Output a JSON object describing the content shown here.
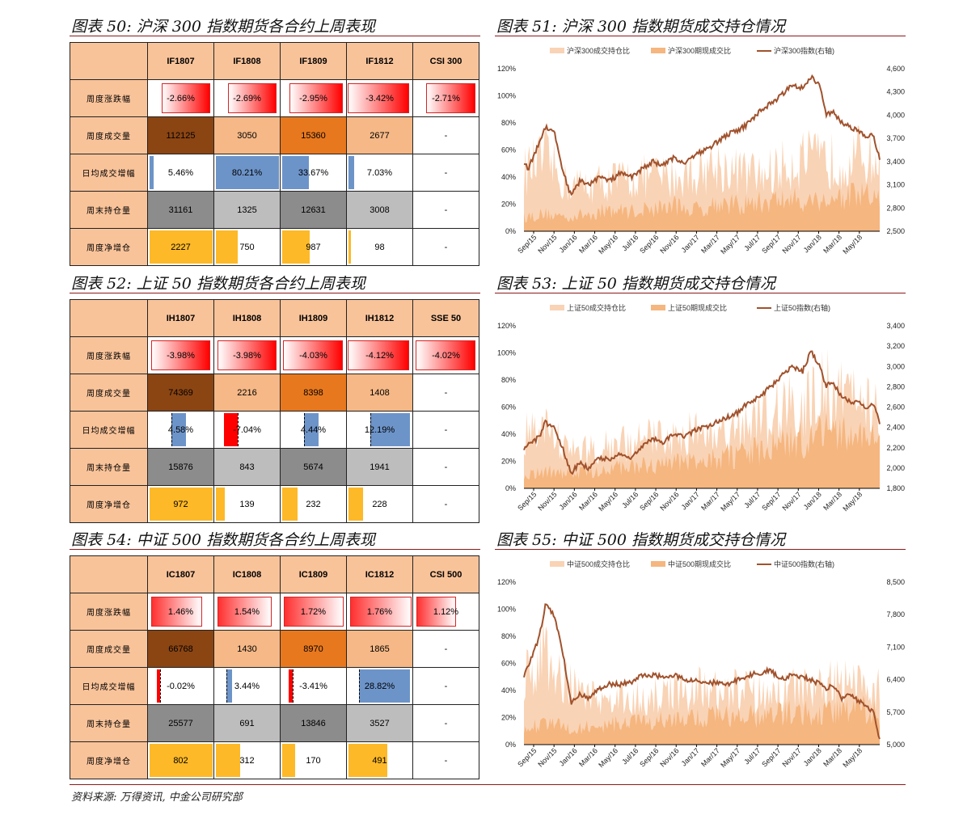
{
  "titles": {
    "t50": "图表 50:  沪深 300 指数期货各合约上周表现",
    "t51": "图表 51:  沪深 300 指数期货成交持仓情况",
    "t52": "图表 52:  上证 50 指数期货各合约上周表现",
    "t53": "图表 53:  上证 50 指数期货成交持仓情况",
    "t54": "图表 54:  中证 500 指数期货各合约上周表现",
    "t55": "图表 55:  中证 500 指数期货成交持仓情况"
  },
  "source": "资料来源:  万得资讯,  中金公司研究部",
  "colors": {
    "header": "#F9C39A",
    "red": "#FF0000",
    "brown": "#8B4513",
    "orange": "#E8781E",
    "peach": "#F5B886",
    "blue": "#6D94C9",
    "darkgray": "#8C8C8C",
    "gray": "#BDBDBD",
    "gold": "#FDB927",
    "line": "#A0522D",
    "area1": "#F9D3B5",
    "area2": "#F5B67F",
    "rule": "#8B1A1A"
  },
  "tables": [
    {
      "id": "t50",
      "headers": [
        "IF1807",
        "IF1808",
        "IF1809",
        "IF1812",
        "CSI 300"
      ],
      "rows": [
        {
          "label": "周度涨跌幅",
          "kind": "neg",
          "cells": [
            {
              "text": "-2.66%",
              "v": 2.66
            },
            {
              "text": "-2.69%",
              "v": 2.69
            },
            {
              "text": "-2.95%",
              "v": 2.95
            },
            {
              "text": "-3.42%",
              "v": 3.42
            },
            {
              "text": "-2.71%",
              "v": 2.71
            }
          ]
        },
        {
          "label": "周度成交量",
          "kind": "heat",
          "cells": [
            {
              "text": "112125",
              "tone": "brown"
            },
            {
              "text": "3050",
              "tone": "peach"
            },
            {
              "text": "15360",
              "tone": "orange"
            },
            {
              "text": "2677",
              "tone": "peach"
            },
            {
              "text": "-",
              "tone": "none"
            }
          ]
        },
        {
          "label": "日均成交增幅",
          "kind": "bar",
          "color": "blue",
          "cells": [
            {
              "text": "5.46%",
              "v": 0.068
            },
            {
              "text": "80.21%",
              "v": 1.0
            },
            {
              "text": "33.67%",
              "v": 0.42
            },
            {
              "text": "7.03%",
              "v": 0.088
            },
            {
              "text": "-",
              "v": 0
            }
          ]
        },
        {
          "label": "周末持仓量",
          "kind": "gray",
          "cells": [
            {
              "text": "31161",
              "tone": "darkgray"
            },
            {
              "text": "1325",
              "tone": "gray"
            },
            {
              "text": "12631",
              "tone": "darkgray"
            },
            {
              "text": "3008",
              "tone": "gray"
            },
            {
              "text": "-",
              "tone": "none"
            }
          ]
        },
        {
          "label": "周度净增仓",
          "kind": "bar",
          "color": "gold",
          "cells": [
            {
              "text": "2227",
              "v": 1.0
            },
            {
              "text": "750",
              "v": 0.34
            },
            {
              "text": "987",
              "v": 0.44
            },
            {
              "text": "98",
              "v": 0.044
            },
            {
              "text": "-",
              "v": 0
            }
          ]
        }
      ]
    },
    {
      "id": "t52",
      "headers": [
        "IH1807",
        "IH1808",
        "IH1809",
        "IH1812",
        "SSE 50"
      ],
      "rows": [
        {
          "label": "周度涨跌幅",
          "kind": "neg",
          "cells": [
            {
              "text": "-3.98%",
              "v": 3.98
            },
            {
              "text": "-3.98%",
              "v": 3.98
            },
            {
              "text": "-4.03%",
              "v": 4.03
            },
            {
              "text": "-4.12%",
              "v": 4.12
            },
            {
              "text": "-4.02%",
              "v": 4.02
            }
          ]
        },
        {
          "label": "周度成交量",
          "kind": "heat",
          "cells": [
            {
              "text": "74369",
              "tone": "brown"
            },
            {
              "text": "2216",
              "tone": "peach"
            },
            {
              "text": "8398",
              "tone": "orange"
            },
            {
              "text": "1408",
              "tone": "peach"
            },
            {
              "text": "-",
              "tone": "none"
            }
          ]
        },
        {
          "label": "日均成交增幅",
          "kind": "mixbar",
          "cells": [
            {
              "text": "4.58%",
              "v": 4.58
            },
            {
              "text": "-7.04%",
              "v": -7.04
            },
            {
              "text": "4.44%",
              "v": 4.44
            },
            {
              "text": "12.19%",
              "v": 12.19
            },
            {
              "text": "-",
              "v": 0
            }
          ]
        },
        {
          "label": "周末持仓量",
          "kind": "gray",
          "cells": [
            {
              "text": "15876",
              "tone": "darkgray"
            },
            {
              "text": "843",
              "tone": "gray"
            },
            {
              "text": "5674",
              "tone": "darkgray"
            },
            {
              "text": "1941",
              "tone": "gray"
            },
            {
              "text": "-",
              "tone": "none"
            }
          ]
        },
        {
          "label": "周度净增仓",
          "kind": "bar",
          "color": "gold",
          "cells": [
            {
              "text": "972",
              "v": 1.0
            },
            {
              "text": "139",
              "v": 0.14
            },
            {
              "text": "232",
              "v": 0.24
            },
            {
              "text": "228",
              "v": 0.235
            },
            {
              "text": "-",
              "v": 0
            }
          ]
        }
      ]
    },
    {
      "id": "t54",
      "headers": [
        "IC1807",
        "IC1808",
        "IC1809",
        "IC1812",
        "CSI 500"
      ],
      "rows": [
        {
          "label": "周度涨跌幅",
          "kind": "pos",
          "cells": [
            {
              "text": "1.46%",
              "v": 1.46
            },
            {
              "text": "1.54%",
              "v": 1.54
            },
            {
              "text": "1.72%",
              "v": 1.72
            },
            {
              "text": "1.76%",
              "v": 1.76
            },
            {
              "text": "1.12%",
              "v": 1.12
            }
          ]
        },
        {
          "label": "周度成交量",
          "kind": "heat",
          "cells": [
            {
              "text": "66768",
              "tone": "brown"
            },
            {
              "text": "1430",
              "tone": "peach"
            },
            {
              "text": "8970",
              "tone": "orange"
            },
            {
              "text": "1865",
              "tone": "peach"
            },
            {
              "text": "-",
              "tone": "none"
            }
          ]
        },
        {
          "label": "日均成交增幅",
          "kind": "mixbar",
          "cells": [
            {
              "text": "-0.02%",
              "v": -0.02
            },
            {
              "text": "3.44%",
              "v": 3.44
            },
            {
              "text": "-3.41%",
              "v": -3.41
            },
            {
              "text": "28.82%",
              "v": 28.82
            },
            {
              "text": "-",
              "v": 0
            }
          ]
        },
        {
          "label": "周末持仓量",
          "kind": "gray",
          "cells": [
            {
              "text": "25577",
              "tone": "darkgray"
            },
            {
              "text": "691",
              "tone": "gray"
            },
            {
              "text": "13846",
              "tone": "darkgray"
            },
            {
              "text": "3527",
              "tone": "gray"
            },
            {
              "text": "-",
              "tone": "none"
            }
          ]
        },
        {
          "label": "周度净增仓",
          "kind": "bar",
          "color": "gold",
          "cells": [
            {
              "text": "802",
              "v": 1.0
            },
            {
              "text": "312",
              "v": 0.39
            },
            {
              "text": "170",
              "v": 0.21
            },
            {
              "text": "491",
              "v": 0.61
            },
            {
              "text": "-",
              "v": 0
            }
          ]
        }
      ]
    }
  ],
  "chart_data": [
    {
      "id": "c51",
      "type": "line",
      "legend": [
        "沪深300成交持仓比",
        "沪深300期现成交比",
        "沪深300指数(右轴)"
      ],
      "x_ticks": [
        "Sep/15",
        "Nov/15",
        "Jan/16",
        "Mar/16",
        "May/16",
        "Jul/16",
        "Sep/16",
        "Nov/16",
        "Jan/17",
        "Mar/17",
        "May/17",
        "Jul/17",
        "Sep/17",
        "Nov/17",
        "Jan/18",
        "Mar/18",
        "May/18"
      ],
      "y_left": [
        "0%",
        "20%",
        "40%",
        "60%",
        "80%",
        "100%",
        "120%"
      ],
      "ylim_left": [
        0,
        1.2
      ],
      "y_right": [
        "2,500",
        "2,800",
        "3,100",
        "3,400",
        "3,700",
        "4,000",
        "4,300",
        "4,600"
      ],
      "ylim_right": [
        2500,
        4600
      ],
      "index_x": [
        0,
        0.2,
        0.5,
        1.0,
        1.4,
        1.8,
        2.2,
        2.6,
        3,
        3.5,
        4,
        4.5,
        5,
        5.5,
        6,
        6.5,
        7,
        7.5,
        8,
        8.5,
        9,
        9.5,
        10,
        10.5,
        11,
        11.5,
        12,
        12.5,
        13,
        13.4,
        13.8,
        14.1,
        14.4,
        14.8,
        15.2,
        15.6,
        16,
        16.3,
        16.6
      ],
      "index": [
        3400,
        3300,
        3500,
        3850,
        3800,
        3300,
        2950,
        3150,
        3100,
        3200,
        3150,
        3250,
        3200,
        3300,
        3400,
        3350,
        3450,
        3380,
        3500,
        3550,
        3650,
        3750,
        3800,
        3900,
        4050,
        4150,
        4250,
        4400,
        4350,
        4500,
        4380,
        4000,
        4050,
        3900,
        3850,
        3800,
        3700,
        3750,
        3420
      ],
      "ratio1_x": [
        0,
        1,
        2,
        3,
        4,
        5,
        6,
        7,
        8,
        9,
        10,
        11,
        12,
        13,
        14,
        15,
        16,
        16.6
      ],
      "ratio1": [
        0.45,
        0.55,
        0.35,
        0.35,
        0.38,
        0.4,
        0.42,
        0.4,
        0.45,
        0.5,
        0.45,
        0.42,
        0.48,
        0.55,
        0.52,
        0.55,
        0.58,
        0.5
      ],
      "ratio2_x": [
        0,
        1,
        2,
        3,
        4,
        5,
        6,
        7,
        8,
        9,
        10,
        11,
        12,
        13,
        14,
        15,
        16,
        16.6
      ],
      "ratio2": [
        0.1,
        0.12,
        0.1,
        0.12,
        0.15,
        0.14,
        0.16,
        0.18,
        0.15,
        0.2,
        0.18,
        0.2,
        0.22,
        0.22,
        0.22,
        0.24,
        0.25,
        0.22
      ]
    },
    {
      "id": "c53",
      "type": "line",
      "legend": [
        "上证50成交持仓比",
        "上证50期现成交比",
        "上证50指数(右轴)"
      ],
      "x_ticks": [
        "Sep/15",
        "Nov/15",
        "Jan/16",
        "Mar/16",
        "May/16",
        "Jul/16",
        "Sep/16",
        "Nov/16",
        "Jan/17",
        "Mar/17",
        "May/17",
        "Jul/17",
        "Sep/17",
        "Nov/17",
        "Jan/18",
        "Mar/18",
        "May/18"
      ],
      "y_left": [
        "0%",
        "20%",
        "40%",
        "60%",
        "80%",
        "100%",
        "120%"
      ],
      "ylim_left": [
        0,
        1.2
      ],
      "y_right": [
        "1,800",
        "2,000",
        "2,200",
        "2,400",
        "2,600",
        "2,800",
        "3,000",
        "3,200",
        "3,400"
      ],
      "ylim_right": [
        1800,
        3400
      ],
      "index_x": [
        0,
        0.3,
        0.7,
        1.0,
        1.4,
        1.8,
        2.2,
        2.6,
        3,
        3.5,
        4,
        4.5,
        5,
        5.5,
        6,
        6.5,
        7,
        7.5,
        8,
        8.5,
        9,
        9.5,
        10,
        10.5,
        11,
        11.5,
        12,
        12.5,
        13,
        13.4,
        13.8,
        14.1,
        14.4,
        14.8,
        15.2,
        15.6,
        16,
        16.3,
        16.6
      ],
      "index": [
        2200,
        2250,
        2300,
        2450,
        2400,
        2200,
        1950,
        2050,
        2000,
        2100,
        2080,
        2150,
        2100,
        2200,
        2300,
        2250,
        2350,
        2300,
        2380,
        2400,
        2450,
        2500,
        2550,
        2650,
        2700,
        2800,
        2900,
        3000,
        2950,
        3150,
        3000,
        2800,
        2850,
        2700,
        2650,
        2650,
        2600,
        2620,
        2450
      ],
      "ratio1_x": [
        0,
        1,
        2,
        3,
        4,
        5,
        6,
        7,
        8,
        9,
        10,
        11,
        12,
        13,
        14,
        15,
        16,
        16.6
      ],
      "ratio1": [
        0.4,
        0.45,
        0.3,
        0.28,
        0.32,
        0.35,
        0.38,
        0.4,
        0.42,
        0.45,
        0.48,
        0.5,
        0.6,
        0.65,
        0.75,
        0.7,
        0.65,
        0.6
      ],
      "ratio2_x": [
        0,
        1,
        2,
        3,
        4,
        5,
        6,
        7,
        8,
        9,
        10,
        11,
        12,
        13,
        14,
        15,
        16,
        16.6
      ],
      "ratio2": [
        0.1,
        0.12,
        0.1,
        0.12,
        0.14,
        0.15,
        0.16,
        0.18,
        0.2,
        0.22,
        0.24,
        0.26,
        0.3,
        0.35,
        0.4,
        0.38,
        0.36,
        0.34
      ]
    },
    {
      "id": "c55",
      "type": "line",
      "legend": [
        "中证500成交持仓比",
        "中证500期现成交比",
        "中证500指数(右轴)"
      ],
      "x_ticks": [
        "Sep/15",
        "Nov/15",
        "Jan/16",
        "Mar/16",
        "May/16",
        "Jul/16",
        "Sep/16",
        "Nov/16",
        "Jan/17",
        "Mar/17",
        "May/17",
        "Jul/17",
        "Sep/17",
        "Nov/17",
        "Jan/18",
        "Mar/18",
        "May/18"
      ],
      "y_left": [
        "0%",
        "20%",
        "40%",
        "60%",
        "80%",
        "100%",
        "120%"
      ],
      "ylim_left": [
        0,
        1.2
      ],
      "y_right": [
        "5,000",
        "5,700",
        "6,400",
        "7,100",
        "7,800",
        "8,500"
      ],
      "ylim_right": [
        5000,
        8500
      ],
      "index_x": [
        0,
        0.3,
        0.7,
        1.0,
        1.4,
        1.8,
        2.2,
        2.6,
        3,
        3.5,
        4,
        4.5,
        5,
        5.5,
        6,
        6.5,
        7,
        7.5,
        8,
        8.5,
        9,
        9.5,
        10,
        10.5,
        11,
        11.5,
        12,
        12.5,
        13,
        13.4,
        13.8,
        14.1,
        14.4,
        14.8,
        15.2,
        15.6,
        16,
        16.3,
        16.6
      ],
      "index": [
        6500,
        6800,
        7300,
        8000,
        7800,
        7000,
        5900,
        6100,
        6000,
        6200,
        6300,
        6300,
        6350,
        6500,
        6500,
        6450,
        6500,
        6400,
        6400,
        6300,
        6350,
        6300,
        6400,
        6500,
        6550,
        6600,
        6400,
        6500,
        6450,
        6400,
        6300,
        6200,
        6300,
        6000,
        6100,
        5950,
        5800,
        5700,
        5100
      ],
      "ratio1_x": [
        0,
        1,
        2,
        3,
        4,
        5,
        6,
        7,
        8,
        9,
        10,
        11,
        12,
        13,
        14,
        15,
        16,
        16.6
      ],
      "ratio1": [
        0.5,
        0.7,
        0.45,
        0.35,
        0.3,
        0.35,
        0.38,
        0.4,
        0.42,
        0.4,
        0.4,
        0.38,
        0.4,
        0.42,
        0.45,
        0.45,
        0.45,
        0.4
      ],
      "ratio2_x": [
        0,
        1,
        2,
        3,
        4,
        5,
        6,
        7,
        8,
        9,
        10,
        11,
        12,
        13,
        14,
        15,
        16,
        16.6
      ],
      "ratio2": [
        0.1,
        0.15,
        0.12,
        0.12,
        0.14,
        0.15,
        0.16,
        0.18,
        0.18,
        0.2,
        0.2,
        0.2,
        0.22,
        0.22,
        0.24,
        0.24,
        0.25,
        0.22
      ]
    }
  ]
}
